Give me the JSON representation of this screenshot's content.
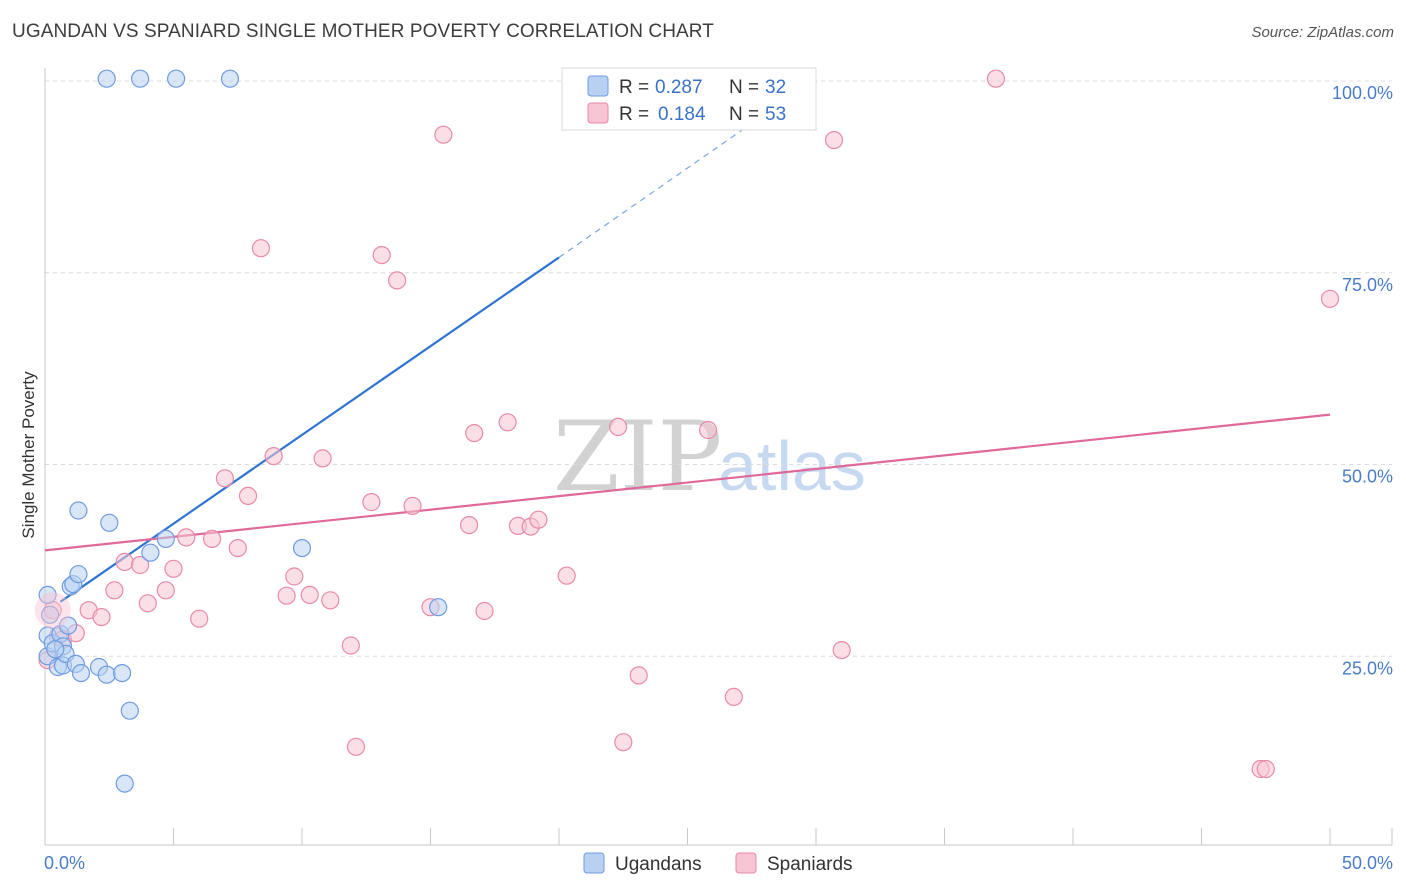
{
  "header": {
    "title": "UGANDAN VS SPANIARD SINGLE MOTHER POVERTY CORRELATION CHART",
    "source": "Source: ZipAtlas.com"
  },
  "watermark": {
    "zip": "ZIP",
    "atlas": "atlas"
  },
  "colors": {
    "blue_fill": "#b8d1f3",
    "blue_stroke": "#6f9be0",
    "blue_line": "#2f74d0",
    "pink_fill": "#f7c4d3",
    "pink_stroke": "#e88aa8",
    "pink_line": "#e0689a",
    "tick_label": "#4a7cc8",
    "grid": "#dcdcdc"
  },
  "legend": {
    "rows": [
      {
        "r_label": "R =",
        "r_value": "0.287",
        "n_label": "N =",
        "n_value": "32"
      },
      {
        "r_label": "R =",
        "r_value": "0.184",
        "n_label": "N =",
        "n_value": "53"
      }
    ]
  },
  "bottom_legend": {
    "ugandans": "Ugandans",
    "spaniards": "Spaniards"
  },
  "chart_data": {
    "type": "scatter",
    "title": "UGANDAN VS SPANIARD SINGLE MOTHER POVERTY CORRELATION CHART",
    "xlabel": "",
    "ylabel": "Single Mother Poverty",
    "xlim": [
      0,
      50
    ],
    "ylim": [
      0,
      102
    ],
    "x_tick_labels": [
      {
        "value": 0,
        "label": "0.0%"
      },
      {
        "value": 50,
        "label": "50.0%"
      }
    ],
    "y_tick_labels": [
      {
        "value": 25,
        "label": "25.0%"
      },
      {
        "value": 50,
        "label": "50.0%"
      },
      {
        "value": 75,
        "label": "75.0%"
      },
      {
        "value": 100,
        "label": "100.0%"
      }
    ],
    "series": [
      {
        "name": "Ugandans",
        "r": 0.287,
        "n": 32,
        "trend": {
          "x0": 0.6,
          "y0": 32.1,
          "x1": 20.0,
          "y1": 77.0,
          "dash_to_x": 30.0,
          "dash_to_y": 100.3
        },
        "points": [
          [
            2.4,
            100.3
          ],
          [
            3.7,
            100.3
          ],
          [
            5.1,
            100.3
          ],
          [
            7.2,
            100.3
          ],
          [
            0.1,
            33.0
          ],
          [
            0.1,
            27.7
          ],
          [
            0.1,
            25.0
          ],
          [
            0.3,
            26.7
          ],
          [
            0.5,
            23.6
          ],
          [
            0.6,
            27.9
          ],
          [
            0.7,
            23.8
          ],
          [
            0.7,
            26.3
          ],
          [
            0.8,
            25.3
          ],
          [
            0.9,
            29.0
          ],
          [
            1.0,
            34.1
          ],
          [
            1.1,
            34.4
          ],
          [
            1.2,
            24.0
          ],
          [
            1.3,
            44.0
          ],
          [
            1.3,
            35.7
          ],
          [
            1.4,
            22.8
          ],
          [
            2.1,
            23.6
          ],
          [
            2.4,
            22.6
          ],
          [
            2.5,
            42.4
          ],
          [
            3.0,
            22.8
          ],
          [
            3.3,
            17.9
          ],
          [
            3.1,
            8.4
          ],
          [
            4.1,
            38.5
          ],
          [
            4.7,
            40.3
          ],
          [
            10.0,
            39.1
          ],
          [
            15.3,
            31.4
          ],
          [
            0.4,
            25.9
          ],
          [
            0.2,
            30.4
          ]
        ]
      },
      {
        "name": "Spaniards",
        "r": 0.184,
        "n": 53,
        "trend": {
          "x0": 0.0,
          "y0": 38.8,
          "x1": 50.0,
          "y1": 56.5
        },
        "points": [
          [
            0.3,
            31.0
          ],
          [
            0.5,
            27.6
          ],
          [
            0.7,
            27.2
          ],
          [
            1.2,
            28.0
          ],
          [
            1.7,
            31.0
          ],
          [
            2.2,
            30.1
          ],
          [
            2.7,
            33.6
          ],
          [
            3.1,
            37.3
          ],
          [
            3.7,
            36.9
          ],
          [
            4.0,
            31.9
          ],
          [
            4.7,
            33.6
          ],
          [
            5.0,
            36.4
          ],
          [
            5.5,
            40.5
          ],
          [
            6.0,
            29.9
          ],
          [
            6.5,
            40.3
          ],
          [
            7.0,
            48.2
          ],
          [
            7.5,
            39.1
          ],
          [
            7.9,
            45.9
          ],
          [
            8.4,
            78.2
          ],
          [
            8.9,
            51.1
          ],
          [
            9.4,
            32.9
          ],
          [
            9.7,
            35.4
          ],
          [
            10.3,
            33.0
          ],
          [
            10.8,
            50.8
          ],
          [
            11.1,
            32.3
          ],
          [
            11.9,
            26.4
          ],
          [
            12.1,
            13.2
          ],
          [
            12.7,
            45.1
          ],
          [
            13.1,
            77.3
          ],
          [
            13.7,
            74.0
          ],
          [
            14.3,
            44.6
          ],
          [
            15.0,
            31.4
          ],
          [
            15.5,
            93.0
          ],
          [
            16.5,
            42.1
          ],
          [
            16.7,
            54.1
          ],
          [
            17.1,
            30.9
          ],
          [
            18.0,
            55.5
          ],
          [
            18.4,
            42.0
          ],
          [
            18.9,
            41.9
          ],
          [
            19.2,
            42.8
          ],
          [
            20.3,
            35.5
          ],
          [
            22.3,
            54.9
          ],
          [
            22.5,
            13.8
          ],
          [
            23.1,
            22.5
          ],
          [
            25.8,
            54.5
          ],
          [
            26.8,
            19.7
          ],
          [
            30.7,
            92.3
          ],
          [
            31.0,
            25.8
          ],
          [
            37.0,
            100.3
          ],
          [
            47.3,
            10.3
          ],
          [
            47.5,
            10.3
          ],
          [
            50.0,
            71.6
          ],
          [
            0.1,
            24.5
          ]
        ]
      }
    ]
  }
}
